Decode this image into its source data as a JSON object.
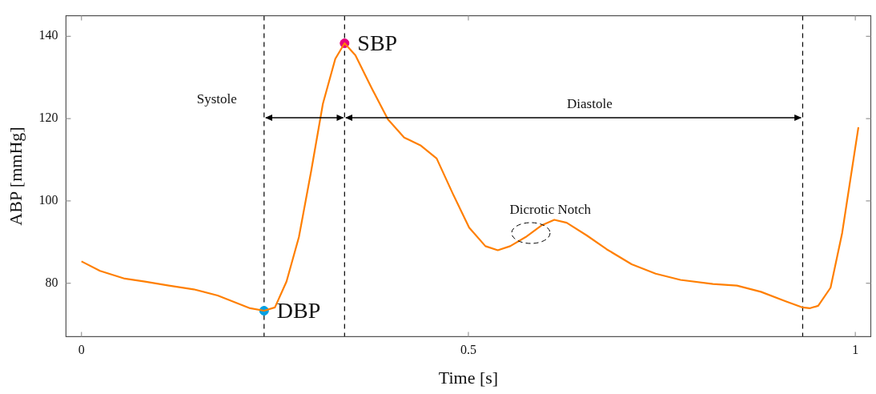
{
  "chart_data": {
    "type": "line",
    "xlabel": "Time [s]",
    "ylabel": "ABP [mmHg]",
    "xlim": [
      -0.02,
      1.02
    ],
    "ylim": [
      67,
      145
    ],
    "xticks": [
      0,
      0.5,
      1
    ],
    "yticks": [
      80,
      100,
      120,
      140
    ],
    "legend": false,
    "grid": false,
    "series": [
      {
        "color": "#ff7f00",
        "x": [
          0,
          0.024,
          0.056,
          0.082,
          0.113,
          0.145,
          0.176,
          0.218,
          0.236,
          0.25,
          0.265,
          0.281,
          0.297,
          0.312,
          0.328,
          0.34,
          0.354,
          0.375,
          0.396,
          0.417,
          0.438,
          0.459,
          0.48,
          0.501,
          0.522,
          0.538,
          0.554,
          0.574,
          0.595,
          0.611,
          0.627,
          0.653,
          0.679,
          0.711,
          0.742,
          0.774,
          0.816,
          0.847,
          0.878,
          0.91,
          0.932,
          0.941,
          0.952,
          0.968,
          0.983,
          1.004
        ],
        "values": [
          85.3,
          83,
          81.1,
          80.4,
          79.4,
          78.5,
          77,
          73.9,
          73.3,
          74.1,
          80.4,
          91.2,
          107.4,
          123.6,
          134.5,
          138.3,
          135.4,
          127.4,
          119.8,
          115.4,
          113.5,
          110.3,
          101.7,
          93.5,
          89,
          88,
          89,
          91.2,
          94.1,
          95.4,
          94.7,
          91.6,
          88.2,
          84.6,
          82.3,
          80.8,
          79.8,
          79.4,
          77.9,
          75.6,
          74.1,
          73.9,
          74.5,
          78.9,
          92.2,
          117.9
        ]
      },
      {
        "type": "scatter",
        "name": "SBP",
        "color": "#e6007e",
        "x": [
          0.34
        ],
        "values": [
          138.3
        ]
      },
      {
        "type": "scatter",
        "name": "DBP",
        "color": "#00a0e3",
        "x": [
          0.236
        ],
        "values": [
          73.3
        ]
      }
    ],
    "ref_lines": [
      {
        "axis": "x",
        "value": 0.236,
        "color": "#000000",
        "line_style": "dashed"
      },
      {
        "axis": "x",
        "value": 0.34,
        "color": "#000000",
        "line_style": "dashed"
      },
      {
        "axis": "x",
        "value": 0.932,
        "color": "#000000",
        "line_style": "dashed"
      }
    ],
    "annotations": [
      "Systole",
      "Diastole",
      {
        "text": "Dicrotic Notch",
        "x": 0.581,
        "y": 92.2
      }
    ]
  }
}
